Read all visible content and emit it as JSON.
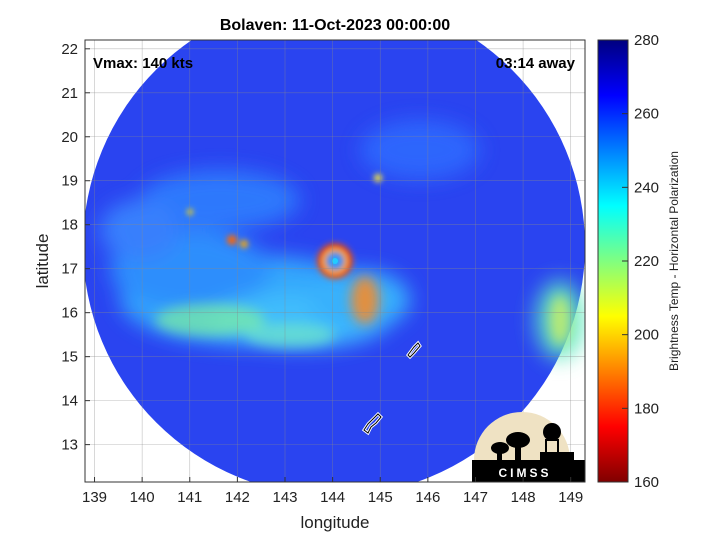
{
  "title": "Bolaven: 11-Oct-2023 00:00:00",
  "vmax_label": "Vmax: 140 kts",
  "time_away_label": "03:14 away",
  "axes": {
    "xlabel": "longitude",
    "ylabel": "latitude",
    "xticks": [
      "139",
      "140",
      "141",
      "142",
      "143",
      "144",
      "145",
      "146",
      "147",
      "148",
      "149"
    ],
    "yticks": [
      "13",
      "14",
      "15",
      "16",
      "17",
      "18",
      "19",
      "20",
      "21",
      "22"
    ],
    "xlim": [
      138.8,
      149.3
    ],
    "ylim": [
      12.15,
      22.2
    ],
    "grid": true
  },
  "colorbar": {
    "title": "Brightness Temp - Horizontal Polarization",
    "ticks": [
      "160",
      "180",
      "200",
      "220",
      "240",
      "260",
      "280"
    ],
    "range": [
      160,
      280
    ],
    "colormap": [
      "#800000",
      "#ff0000",
      "#ff8000",
      "#ffff00",
      "#80ff80",
      "#00ffff",
      "#0080ff",
      "#0000ff",
      "#000080"
    ]
  },
  "storm": {
    "name": "Bolaven",
    "center_lon": 144.05,
    "center_lat": 17.1,
    "max_wind": "140 kts"
  },
  "colors": {
    "background_field": "#1c3ff0",
    "eyewall": "#ff2000",
    "eye": "#19b8ff"
  },
  "logo": {
    "text": "CIMSS"
  }
}
